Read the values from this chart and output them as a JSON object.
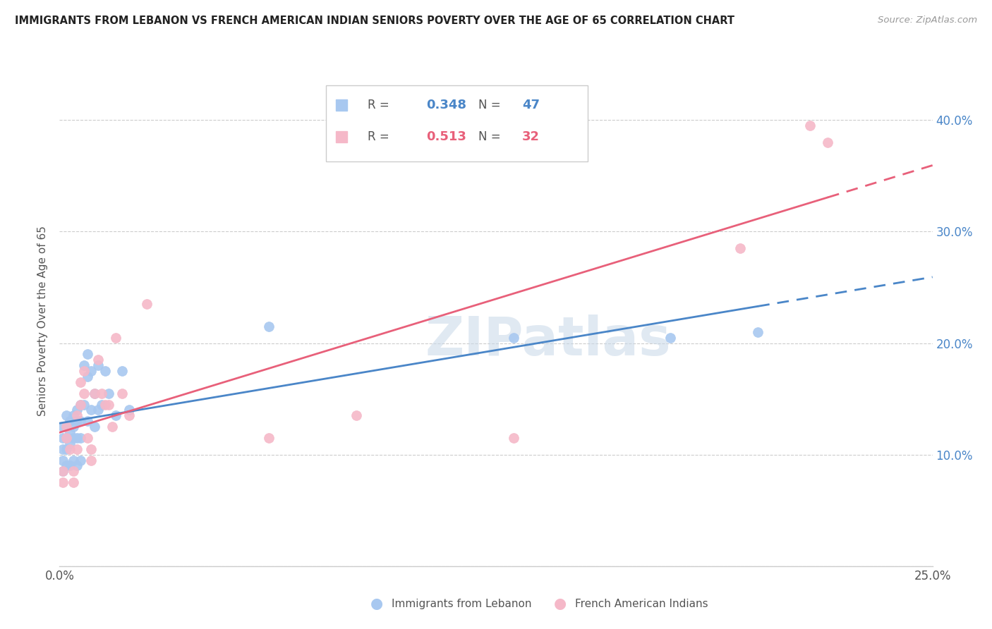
{
  "title": "IMMIGRANTS FROM LEBANON VS FRENCH AMERICAN INDIAN SENIORS POVERTY OVER THE AGE OF 65 CORRELATION CHART",
  "source": "Source: ZipAtlas.com",
  "ylabel": "Seniors Poverty Over the Age of 65",
  "xlim": [
    0.0,
    0.25
  ],
  "ylim": [
    0.0,
    0.44
  ],
  "yticks": [
    0.0,
    0.1,
    0.2,
    0.3,
    0.4
  ],
  "xticks": [
    0.0,
    0.05,
    0.1,
    0.15,
    0.2,
    0.25
  ],
  "xtick_labels": [
    "0.0%",
    "",
    "",
    "",
    "",
    "25.0%"
  ],
  "ytick_right_labels": [
    "",
    "10.0%",
    "20.0%",
    "30.0%",
    "40.0%"
  ],
  "legend_blue_R": "0.348",
  "legend_blue_N": "47",
  "legend_pink_R": "0.513",
  "legend_pink_N": "32",
  "legend_label_blue": "Immigrants from Lebanon",
  "legend_label_pink": "French American Indians",
  "blue_scatter_color": "#a8c8f0",
  "pink_scatter_color": "#f5b8c8",
  "trendline_blue_color": "#4a86c8",
  "trendline_pink_color": "#e8607a",
  "watermark": "ZIPatlas",
  "blue_x": [
    0.001,
    0.001,
    0.001,
    0.001,
    0.001,
    0.002,
    0.002,
    0.002,
    0.002,
    0.002,
    0.003,
    0.003,
    0.003,
    0.003,
    0.004,
    0.004,
    0.004,
    0.004,
    0.005,
    0.005,
    0.005,
    0.005,
    0.006,
    0.006,
    0.006,
    0.006,
    0.007,
    0.007,
    0.008,
    0.008,
    0.008,
    0.009,
    0.009,
    0.01,
    0.01,
    0.011,
    0.011,
    0.012,
    0.013,
    0.014,
    0.016,
    0.018,
    0.02,
    0.06,
    0.13,
    0.175,
    0.2
  ],
  "blue_y": [
    0.125,
    0.115,
    0.105,
    0.095,
    0.085,
    0.135,
    0.125,
    0.115,
    0.105,
    0.09,
    0.13,
    0.12,
    0.11,
    0.09,
    0.135,
    0.125,
    0.115,
    0.095,
    0.14,
    0.13,
    0.115,
    0.09,
    0.145,
    0.13,
    0.115,
    0.095,
    0.18,
    0.145,
    0.19,
    0.17,
    0.13,
    0.175,
    0.14,
    0.155,
    0.125,
    0.18,
    0.14,
    0.145,
    0.175,
    0.155,
    0.135,
    0.175,
    0.14,
    0.215,
    0.205,
    0.205,
    0.21
  ],
  "pink_x": [
    0.001,
    0.001,
    0.002,
    0.002,
    0.003,
    0.004,
    0.004,
    0.005,
    0.005,
    0.006,
    0.006,
    0.007,
    0.007,
    0.008,
    0.009,
    0.009,
    0.01,
    0.011,
    0.012,
    0.013,
    0.014,
    0.015,
    0.016,
    0.018,
    0.02,
    0.025,
    0.06,
    0.085,
    0.13,
    0.195,
    0.215,
    0.22
  ],
  "pink_y": [
    0.085,
    0.075,
    0.125,
    0.115,
    0.105,
    0.085,
    0.075,
    0.135,
    0.105,
    0.165,
    0.145,
    0.175,
    0.155,
    0.115,
    0.105,
    0.095,
    0.155,
    0.185,
    0.155,
    0.145,
    0.145,
    0.125,
    0.205,
    0.155,
    0.135,
    0.235,
    0.115,
    0.135,
    0.115,
    0.285,
    0.395,
    0.38
  ]
}
